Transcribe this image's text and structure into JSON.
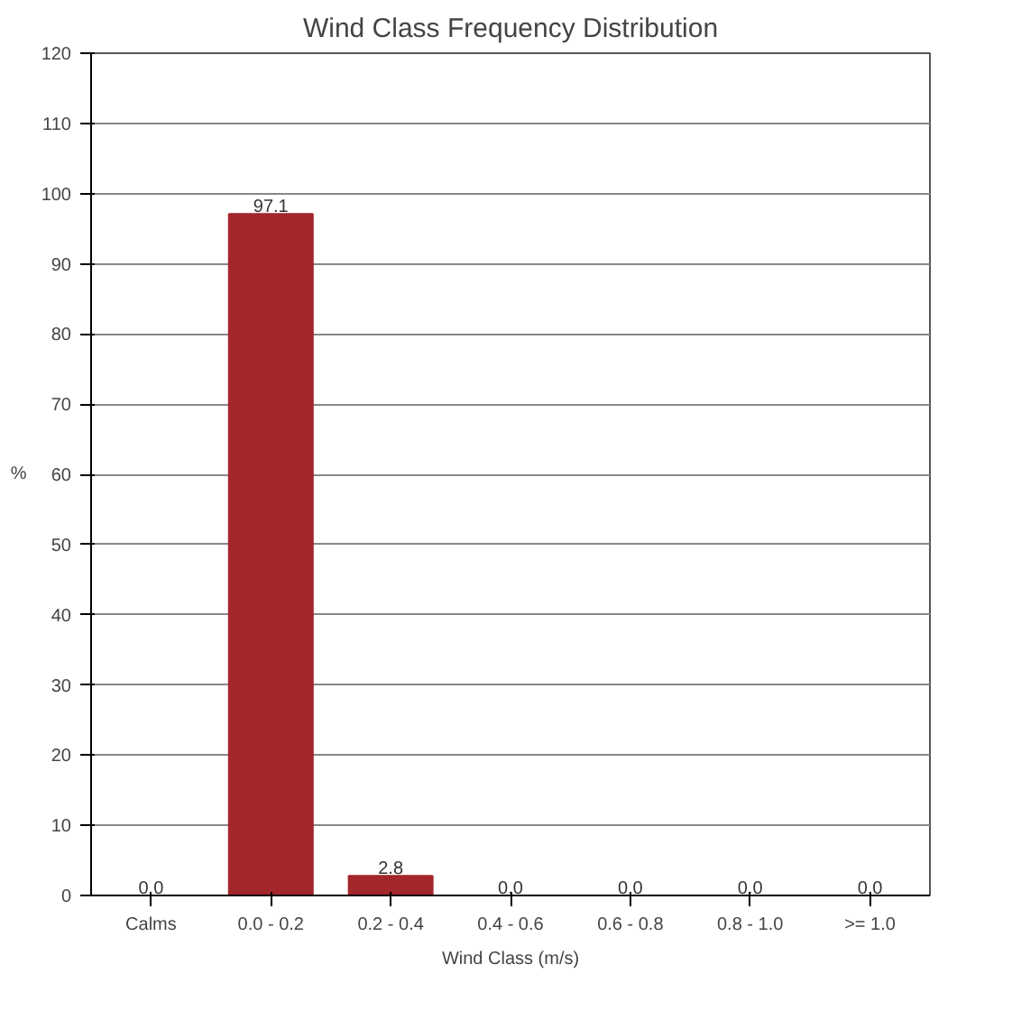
{
  "chart_data": {
    "type": "bar",
    "title": "Wind Class Frequency Distribution",
    "xlabel": "Wind Class (m/s)",
    "ylabel": "%",
    "categories": [
      "Calms",
      "0.0 - 0.2",
      "0.2 - 0.4",
      "0.4 - 0.6",
      "0.6 - 0.8",
      "0.8 - 1.0",
      ">= 1.0"
    ],
    "values": [
      0.0,
      97.1,
      2.8,
      0.0,
      0.0,
      0.0,
      0.0
    ],
    "value_labels": [
      "0.0",
      "97.1",
      "2.8",
      "0.0",
      "0.0",
      "0.0",
      "0.0"
    ],
    "color": "#a3262b",
    "ylim": [
      0,
      120
    ],
    "yticks": [
      0,
      10,
      20,
      30,
      40,
      50,
      60,
      70,
      80,
      90,
      100,
      110,
      120
    ],
    "grid": "y"
  }
}
